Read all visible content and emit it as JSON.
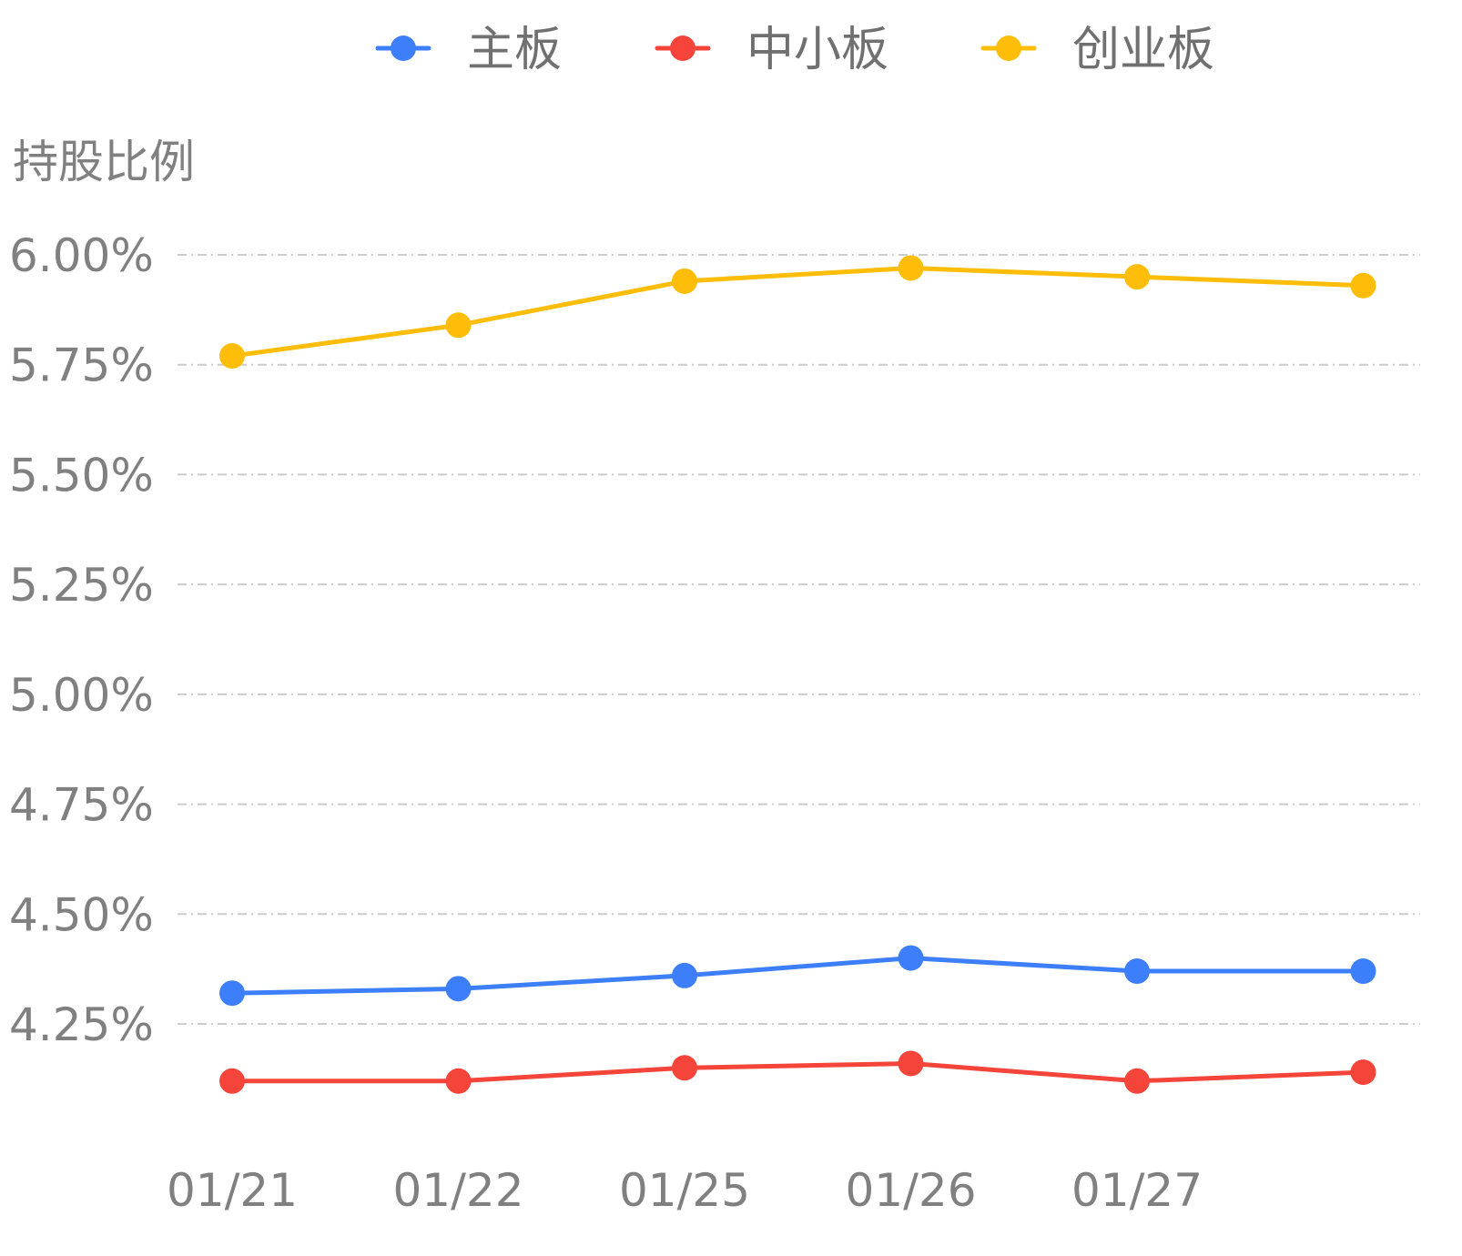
{
  "chart_data": {
    "type": "line",
    "categories": [
      "01/21",
      "01/22",
      "01/25",
      "01/26",
      "01/27",
      ""
    ],
    "ylabel": "持股比例",
    "ylim": [
      4.0,
      6.1
    ],
    "yticks": [
      6.0,
      5.75,
      5.5,
      5.25,
      5.0,
      4.75,
      4.5,
      4.25
    ],
    "ytick_labels": [
      "6.00%",
      "5.75%",
      "5.50%",
      "5.25%",
      "5.00%",
      "4.75%",
      "4.50%",
      "4.25%"
    ],
    "grid": true,
    "legend_position": "top-center",
    "series": [
      {
        "name": "主板",
        "color": "#3d7ffa",
        "values": [
          4.32,
          4.33,
          4.36,
          4.4,
          4.37,
          4.37
        ]
      },
      {
        "name": "中小板",
        "color": "#f5443a",
        "values": [
          4.12,
          4.12,
          4.15,
          4.16,
          4.12,
          4.14
        ]
      },
      {
        "name": "创业板",
        "color": "#fdbd08",
        "values": [
          5.77,
          5.84,
          5.94,
          5.97,
          5.95,
          5.93
        ]
      }
    ]
  }
}
